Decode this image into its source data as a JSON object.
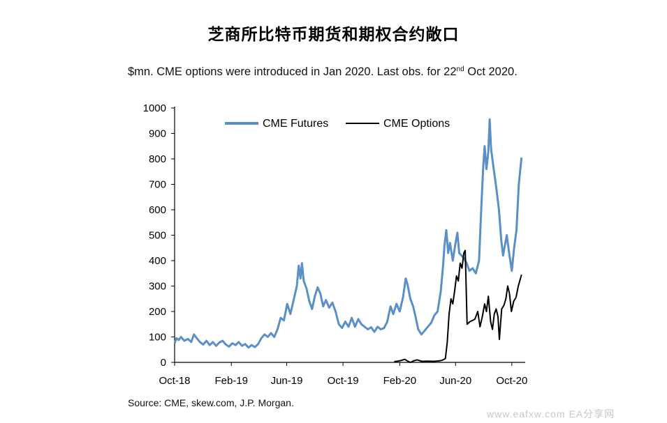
{
  "page_title": "芝商所比特币期货和期权合约敞口",
  "subtitle": {
    "pre": "$mn. CME options were introduced in Jan 2020. Last obs. for 22",
    "sup": "nd",
    "post": " Oct 2020."
  },
  "source": "Source: CME, skew.com, J.P. Morgan.",
  "watermark": "www.eafxw.com  EA分享网",
  "chart_data": {
    "type": "line",
    "title": "",
    "xlabel": "",
    "ylabel": "",
    "ylim": [
      0,
      1000
    ],
    "yticks": [
      0,
      100,
      200,
      300,
      400,
      500,
      600,
      700,
      800,
      900,
      1000
    ],
    "xlim": [
      "2018-10-01",
      "2020-10-30"
    ],
    "xticks": [
      {
        "label": "Oct-18",
        "date": "2018-10-01"
      },
      {
        "label": "Feb-19",
        "date": "2019-02-01"
      },
      {
        "label": "Jun-19",
        "date": "2019-06-01"
      },
      {
        "label": "Oct-19",
        "date": "2019-10-01"
      },
      {
        "label": "Feb-20",
        "date": "2020-02-01"
      },
      {
        "label": "Jun-20",
        "date": "2020-06-01"
      },
      {
        "label": "Oct-20",
        "date": "2020-10-01"
      }
    ],
    "grid": false,
    "legend_position": "top-center",
    "series": [
      {
        "name": "CME Futures",
        "color": "#5b8fc7",
        "points": [
          [
            "2018-10-01",
            75
          ],
          [
            "2018-10-05",
            95
          ],
          [
            "2018-10-10",
            88
          ],
          [
            "2018-10-15",
            100
          ],
          [
            "2018-10-22",
            85
          ],
          [
            "2018-10-30",
            92
          ],
          [
            "2018-11-06",
            80
          ],
          [
            "2018-11-12",
            110
          ],
          [
            "2018-11-18",
            95
          ],
          [
            "2018-11-25",
            80
          ],
          [
            "2018-12-02",
            70
          ],
          [
            "2018-12-09",
            85
          ],
          [
            "2018-12-16",
            68
          ],
          [
            "2018-12-23",
            80
          ],
          [
            "2018-12-30",
            65
          ],
          [
            "2019-01-06",
            78
          ],
          [
            "2019-01-13",
            85
          ],
          [
            "2019-01-20",
            70
          ],
          [
            "2019-01-27",
            62
          ],
          [
            "2019-02-03",
            75
          ],
          [
            "2019-02-10",
            68
          ],
          [
            "2019-02-17",
            80
          ],
          [
            "2019-02-24",
            65
          ],
          [
            "2019-03-03",
            72
          ],
          [
            "2019-03-10",
            58
          ],
          [
            "2019-03-17",
            68
          ],
          [
            "2019-03-24",
            60
          ],
          [
            "2019-03-31",
            72
          ],
          [
            "2019-04-07",
            95
          ],
          [
            "2019-04-14",
            110
          ],
          [
            "2019-04-21",
            100
          ],
          [
            "2019-04-28",
            115
          ],
          [
            "2019-05-05",
            100
          ],
          [
            "2019-05-12",
            130
          ],
          [
            "2019-05-19",
            175
          ],
          [
            "2019-05-26",
            165
          ],
          [
            "2019-06-02",
            230
          ],
          [
            "2019-06-09",
            190
          ],
          [
            "2019-06-16",
            245
          ],
          [
            "2019-06-23",
            300
          ],
          [
            "2019-06-27",
            380
          ],
          [
            "2019-07-01",
            330
          ],
          [
            "2019-07-04",
            390
          ],
          [
            "2019-07-08",
            320
          ],
          [
            "2019-07-14",
            290
          ],
          [
            "2019-07-20",
            240
          ],
          [
            "2019-07-26",
            210
          ],
          [
            "2019-08-01",
            260
          ],
          [
            "2019-08-07",
            295
          ],
          [
            "2019-08-13",
            270
          ],
          [
            "2019-08-19",
            220
          ],
          [
            "2019-08-25",
            245
          ],
          [
            "2019-09-01",
            215
          ],
          [
            "2019-09-08",
            235
          ],
          [
            "2019-09-15",
            200
          ],
          [
            "2019-09-22",
            150
          ],
          [
            "2019-09-29",
            135
          ],
          [
            "2019-10-06",
            160
          ],
          [
            "2019-10-13",
            140
          ],
          [
            "2019-10-20",
            175
          ],
          [
            "2019-10-27",
            140
          ],
          [
            "2019-11-03",
            170
          ],
          [
            "2019-11-10",
            150
          ],
          [
            "2019-11-17",
            140
          ],
          [
            "2019-11-24",
            130
          ],
          [
            "2019-12-01",
            138
          ],
          [
            "2019-12-08",
            120
          ],
          [
            "2019-12-15",
            140
          ],
          [
            "2019-12-22",
            130
          ],
          [
            "2019-12-29",
            135
          ],
          [
            "2020-01-05",
            160
          ],
          [
            "2020-01-12",
            220
          ],
          [
            "2020-01-18",
            190
          ],
          [
            "2020-01-25",
            230
          ],
          [
            "2020-02-01",
            200
          ],
          [
            "2020-02-08",
            255
          ],
          [
            "2020-02-14",
            330
          ],
          [
            "2020-02-18",
            305
          ],
          [
            "2020-02-24",
            250
          ],
          [
            "2020-03-01",
            220
          ],
          [
            "2020-03-05",
            190
          ],
          [
            "2020-03-12",
            130
          ],
          [
            "2020-03-19",
            110
          ],
          [
            "2020-03-26",
            125
          ],
          [
            "2020-04-02",
            140
          ],
          [
            "2020-04-09",
            155
          ],
          [
            "2020-04-16",
            185
          ],
          [
            "2020-04-23",
            200
          ],
          [
            "2020-04-30",
            280
          ],
          [
            "2020-05-05",
            380
          ],
          [
            "2020-05-08",
            460
          ],
          [
            "2020-05-12",
            520
          ],
          [
            "2020-05-16",
            430
          ],
          [
            "2020-05-20",
            470
          ],
          [
            "2020-05-26",
            400
          ],
          [
            "2020-06-01",
            470
          ],
          [
            "2020-06-05",
            510
          ],
          [
            "2020-06-09",
            430
          ],
          [
            "2020-06-14",
            420
          ],
          [
            "2020-06-19",
            410
          ],
          [
            "2020-06-25",
            390
          ],
          [
            "2020-07-01",
            360
          ],
          [
            "2020-07-08",
            370
          ],
          [
            "2020-07-15",
            350
          ],
          [
            "2020-07-22",
            400
          ],
          [
            "2020-07-27",
            620
          ],
          [
            "2020-07-31",
            770
          ],
          [
            "2020-08-03",
            850
          ],
          [
            "2020-08-07",
            760
          ],
          [
            "2020-08-11",
            830
          ],
          [
            "2020-08-14",
            955
          ],
          [
            "2020-08-17",
            840
          ],
          [
            "2020-08-22",
            770
          ],
          [
            "2020-08-28",
            690
          ],
          [
            "2020-09-03",
            600
          ],
          [
            "2020-09-08",
            480
          ],
          [
            "2020-09-12",
            420
          ],
          [
            "2020-09-16",
            460
          ],
          [
            "2020-09-20",
            500
          ],
          [
            "2020-09-26",
            420
          ],
          [
            "2020-10-01",
            360
          ],
          [
            "2020-10-06",
            450
          ],
          [
            "2020-10-11",
            520
          ],
          [
            "2020-10-16",
            700
          ],
          [
            "2020-10-22",
            805
          ]
        ]
      },
      {
        "name": "CME Options",
        "color": "#000000",
        "points": [
          [
            "2020-01-20",
            3
          ],
          [
            "2020-01-28",
            5
          ],
          [
            "2020-02-05",
            8
          ],
          [
            "2020-02-12",
            12
          ],
          [
            "2020-02-18",
            5
          ],
          [
            "2020-02-24",
            0
          ],
          [
            "2020-03-02",
            6
          ],
          [
            "2020-03-10",
            10
          ],
          [
            "2020-03-20",
            4
          ],
          [
            "2020-04-01",
            5
          ],
          [
            "2020-04-15",
            4
          ],
          [
            "2020-04-28",
            6
          ],
          [
            "2020-05-05",
            10
          ],
          [
            "2020-05-10",
            15
          ],
          [
            "2020-05-14",
            80
          ],
          [
            "2020-05-18",
            190
          ],
          [
            "2020-05-22",
            250
          ],
          [
            "2020-05-26",
            230
          ],
          [
            "2020-05-30",
            280
          ],
          [
            "2020-06-03",
            340
          ],
          [
            "2020-06-07",
            320
          ],
          [
            "2020-06-11",
            390
          ],
          [
            "2020-06-15",
            370
          ],
          [
            "2020-06-19",
            430
          ],
          [
            "2020-06-22",
            440
          ],
          [
            "2020-06-26",
            150
          ],
          [
            "2020-07-02",
            160
          ],
          [
            "2020-07-08",
            165
          ],
          [
            "2020-07-13",
            170
          ],
          [
            "2020-07-19",
            200
          ],
          [
            "2020-07-24",
            140
          ],
          [
            "2020-07-29",
            180
          ],
          [
            "2020-08-03",
            230
          ],
          [
            "2020-08-07",
            200
          ],
          [
            "2020-08-11",
            260
          ],
          [
            "2020-08-16",
            160
          ],
          [
            "2020-08-20",
            130
          ],
          [
            "2020-08-24",
            190
          ],
          [
            "2020-08-28",
            210
          ],
          [
            "2020-09-01",
            180
          ],
          [
            "2020-09-04",
            90
          ],
          [
            "2020-09-09",
            210
          ],
          [
            "2020-09-14",
            225
          ],
          [
            "2020-09-18",
            250
          ],
          [
            "2020-09-22",
            300
          ],
          [
            "2020-09-26",
            270
          ],
          [
            "2020-09-30",
            200
          ],
          [
            "2020-10-05",
            240
          ],
          [
            "2020-10-10",
            255
          ],
          [
            "2020-10-15",
            300
          ],
          [
            "2020-10-22",
            345
          ]
        ]
      }
    ]
  }
}
